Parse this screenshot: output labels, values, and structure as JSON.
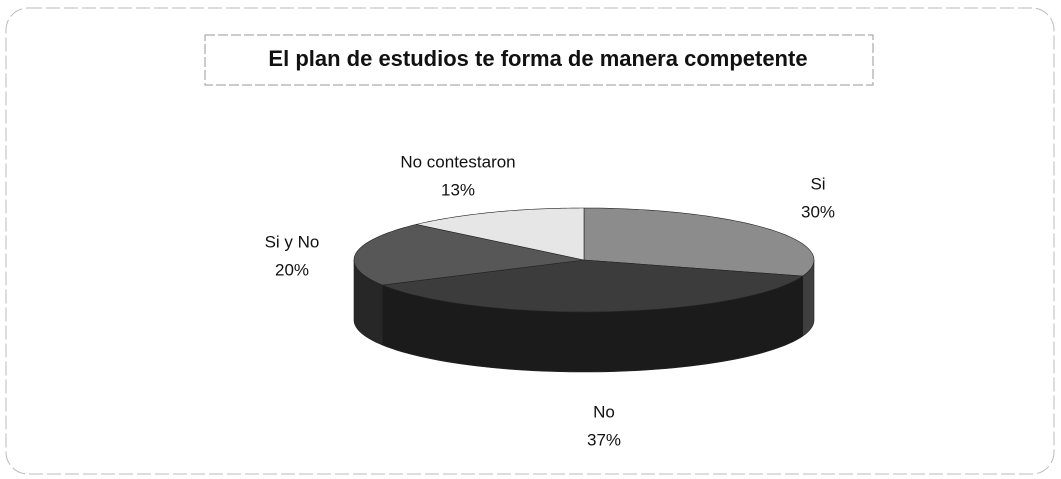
{
  "chart_data": {
    "type": "pie",
    "title": "El plan de estudios te forma de manera competente",
    "categories": [
      "Si",
      "No",
      "Si y No",
      "No contestaron"
    ],
    "values": [
      30,
      37,
      20,
      13
    ],
    "value_labels": [
      "30%",
      "37%",
      "20%",
      "13%"
    ],
    "colors": [
      "#8c8c8c",
      "#3c3c3c",
      "#575757",
      "#e6e6e6"
    ],
    "three_d": true
  }
}
